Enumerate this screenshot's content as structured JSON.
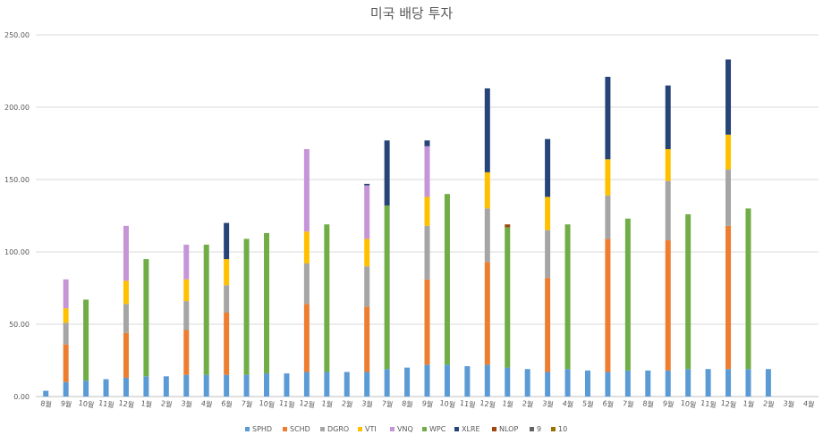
{
  "chart_data": {
    "type": "bar",
    "stacked": true,
    "title": "미국 배당 투자",
    "xlabel": "",
    "ylabel": "",
    "ylim": [
      0,
      250
    ],
    "yticks": [
      "0.00",
      "50.00",
      "100.00",
      "150.00",
      "200.00",
      "250.00"
    ],
    "grid": true,
    "legend_position": "bottom",
    "categories": [
      "8월",
      "9월",
      "10월",
      "11월",
      "12월",
      "1월",
      "2월",
      "3월",
      "4월",
      "6월",
      "7월",
      "10월",
      "11월",
      "12월",
      "1월",
      "2월",
      "3월",
      "7월",
      "8월",
      "9월",
      "10월",
      "11월",
      "12월",
      "1월",
      "2월",
      "3월",
      "4월",
      "5월",
      "6월",
      "7월",
      "8월",
      "9월",
      "10월",
      "11월",
      "12월",
      "1월",
      "2월",
      "3월",
      "4월"
    ],
    "series": [
      {
        "name": "SPHD",
        "color": "#5B9BD5",
        "values": [
          4,
          10,
          11,
          12,
          13,
          14,
          14,
          15,
          15,
          15,
          15,
          16,
          16,
          17,
          17,
          17,
          17,
          19,
          20,
          22,
          22,
          21,
          22,
          20,
          19,
          17,
          19,
          18,
          17,
          18,
          18,
          18,
          19,
          19,
          19,
          19,
          19,
          0,
          0
        ]
      },
      {
        "name": "SCHD",
        "color": "#ED7D31",
        "values": [
          0,
          26,
          0,
          0,
          31,
          0,
          0,
          31,
          0,
          43,
          0,
          0,
          0,
          47,
          0,
          0,
          45,
          0,
          0,
          59,
          0,
          0,
          71,
          0,
          0,
          65,
          0,
          0,
          92,
          0,
          0,
          90,
          0,
          0,
          99,
          0,
          0,
          0,
          0
        ]
      },
      {
        "name": "DGRO",
        "color": "#A5A5A5",
        "values": [
          0,
          15,
          0,
          0,
          20,
          0,
          0,
          20,
          0,
          19,
          0,
          0,
          0,
          28,
          0,
          0,
          28,
          0,
          0,
          37,
          0,
          0,
          37,
          0,
          0,
          33,
          0,
          0,
          30,
          0,
          0,
          41,
          0,
          0,
          39,
          0,
          0,
          0,
          0
        ]
      },
      {
        "name": "VTI",
        "color": "#FFC000",
        "values": [
          0,
          10,
          0,
          0,
          16,
          0,
          0,
          15,
          0,
          18,
          0,
          0,
          0,
          22,
          0,
          0,
          19,
          0,
          0,
          20,
          0,
          0,
          25,
          0,
          0,
          23,
          0,
          0,
          25,
          0,
          0,
          22,
          0,
          0,
          24,
          0,
          0,
          0,
          0
        ]
      },
      {
        "name": "VNQ",
        "color": "#C595D8",
        "values": [
          0,
          20,
          0,
          0,
          38,
          0,
          0,
          24,
          0,
          0,
          0,
          0,
          0,
          57,
          0,
          0,
          37,
          0,
          0,
          35,
          0,
          0,
          0,
          0,
          0,
          0,
          0,
          0,
          0,
          0,
          0,
          0,
          0,
          0,
          0,
          0,
          0,
          0,
          0
        ]
      },
      {
        "name": "WPC",
        "color": "#70AD47",
        "values": [
          0,
          0,
          56,
          0,
          0,
          81,
          0,
          0,
          90,
          0,
          94,
          97,
          0,
          0,
          102,
          0,
          0,
          113,
          0,
          0,
          118,
          0,
          0,
          97,
          0,
          0,
          100,
          0,
          0,
          105,
          0,
          0,
          107,
          0,
          0,
          111,
          0,
          0,
          0
        ]
      },
      {
        "name": "XLRE",
        "color": "#264478",
        "values": [
          0,
          0,
          0,
          0,
          0,
          0,
          0,
          0,
          0,
          25,
          0,
          0,
          0,
          0,
          0,
          0,
          1,
          45,
          0,
          4,
          0,
          0,
          58,
          0,
          0,
          40,
          0,
          0,
          57,
          0,
          0,
          44,
          0,
          0,
          52,
          0,
          0,
          0,
          0
        ]
      },
      {
        "name": "NLOP",
        "color": "#9E480E",
        "values": [
          0,
          0,
          0,
          0,
          0,
          0,
          0,
          0,
          0,
          0,
          0,
          0,
          0,
          0,
          0,
          0,
          0,
          0,
          0,
          0,
          0,
          0,
          0,
          2,
          0,
          0,
          0,
          0,
          0,
          0,
          0,
          0,
          0,
          0,
          0,
          0,
          0,
          0,
          0
        ]
      },
      {
        "name": "9",
        "color": "#636363",
        "values": [
          0,
          0,
          0,
          0,
          0,
          0,
          0,
          0,
          0,
          0,
          0,
          0,
          0,
          0,
          0,
          0,
          0,
          0,
          0,
          0,
          0,
          0,
          0,
          0,
          0,
          0,
          0,
          0,
          0,
          0,
          0,
          0,
          0,
          0,
          0,
          0,
          0,
          0,
          0
        ]
      },
      {
        "name": "10",
        "color": "#997300",
        "values": [
          0,
          0,
          0,
          0,
          0,
          0,
          0,
          0,
          0,
          0,
          0,
          0,
          0,
          0,
          0,
          0,
          0,
          0,
          0,
          0,
          0,
          0,
          0,
          0,
          0,
          0,
          0,
          0,
          0,
          0,
          0,
          0,
          0,
          0,
          0,
          0,
          0,
          0,
          0
        ]
      }
    ]
  }
}
